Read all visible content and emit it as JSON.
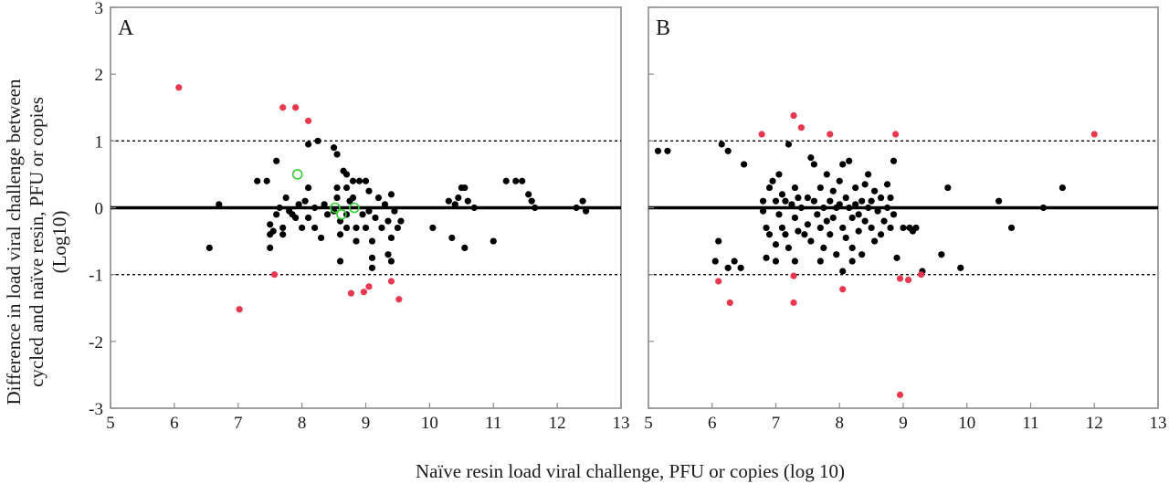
{
  "figure": {
    "ylabel_lines": [
      "Difference in load viral challenge between",
      "cycled and naïve resin, PFU or copies",
      "(Log10)"
    ],
    "xlabel": "Naïve resin load viral challenge, PFU or copies (log 10)"
  },
  "colors": {
    "normal": "#000000",
    "outlier": "#e8384f",
    "open": "#33cc33",
    "frame": "#8a8a8a"
  },
  "chart_data": [
    {
      "type": "scatter",
      "panel_label": "A",
      "xlim": [
        5,
        13
      ],
      "ylim": [
        -3,
        3
      ],
      "xticks": [
        "5",
        "6",
        "7",
        "8",
        "9",
        "10",
        "11",
        "12",
        "13"
      ],
      "yticks": [
        "3",
        "2",
        "1",
        "0",
        "-1",
        "-2",
        "-3"
      ],
      "reference_lines": [
        {
          "y": 0,
          "style": "solid"
        },
        {
          "y": 1,
          "style": "dotted"
        },
        {
          "y": -1,
          "style": "dotted"
        }
      ],
      "series": [
        {
          "kind": "normal",
          "points": [
            [
              6.55,
              -0.6
            ],
            [
              6.7,
              0.05
            ],
            [
              7.3,
              0.4
            ],
            [
              7.45,
              0.4
            ],
            [
              7.5,
              -0.25
            ],
            [
              7.5,
              -0.4
            ],
            [
              7.55,
              -0.35
            ],
            [
              7.5,
              -0.6
            ],
            [
              7.6,
              0.7
            ],
            [
              7.6,
              -0.1
            ],
            [
              7.65,
              0.0
            ],
            [
              7.7,
              -0.3
            ],
            [
              7.7,
              -0.4
            ],
            [
              7.75,
              0.15
            ],
            [
              7.8,
              -0.05
            ],
            [
              7.85,
              -0.1
            ],
            [
              7.9,
              -0.15
            ],
            [
              7.95,
              0.05
            ],
            [
              8.0,
              -0.3
            ],
            [
              8.05,
              0.1
            ],
            [
              8.1,
              0.3
            ],
            [
              8.1,
              -0.15
            ],
            [
              8.1,
              0.95
            ],
            [
              8.2,
              0.0
            ],
            [
              8.2,
              -0.3
            ],
            [
              8.25,
              1.0
            ],
            [
              8.3,
              -0.45
            ],
            [
              8.35,
              0.05
            ],
            [
              8.4,
              -0.1
            ],
            [
              8.5,
              -0.05
            ],
            [
              8.5,
              0.9
            ],
            [
              8.55,
              0.8
            ],
            [
              8.55,
              0.3
            ],
            [
              8.55,
              0.15
            ],
            [
              8.6,
              -0.2
            ],
            [
              8.6,
              -0.4
            ],
            [
              8.65,
              0.55
            ],
            [
              8.7,
              0.5
            ],
            [
              8.7,
              0.3
            ],
            [
              8.7,
              -0.1
            ],
            [
              8.7,
              -0.3
            ],
            [
              8.75,
              0.1
            ],
            [
              8.8,
              0.4
            ],
            [
              8.8,
              0.15
            ],
            [
              8.85,
              -0.3
            ],
            [
              8.85,
              -0.5
            ],
            [
              8.9,
              0.4
            ],
            [
              8.95,
              -0.1
            ],
            [
              9.0,
              0.4
            ],
            [
              9.0,
              -0.3
            ],
            [
              9.05,
              -0.05
            ],
            [
              9.05,
              0.25
            ],
            [
              9.1,
              -0.5
            ],
            [
              9.1,
              -0.75
            ],
            [
              9.15,
              -0.15
            ],
            [
              9.2,
              0.15
            ],
            [
              9.25,
              -0.3
            ],
            [
              9.3,
              0.05
            ],
            [
              9.35,
              -0.2
            ],
            [
              9.35,
              -0.7
            ],
            [
              9.4,
              0.2
            ],
            [
              9.4,
              -0.45
            ],
            [
              9.45,
              -0.05
            ],
            [
              9.5,
              -0.3
            ],
            [
              9.55,
              -0.2
            ],
            [
              8.6,
              -0.8
            ],
            [
              9.4,
              -0.8
            ],
            [
              9.1,
              -0.9
            ],
            [
              10.05,
              -0.3
            ],
            [
              10.3,
              0.1
            ],
            [
              10.35,
              -0.45
            ],
            [
              10.4,
              0.05
            ],
            [
              10.45,
              0.15
            ],
            [
              10.5,
              0.3
            ],
            [
              10.55,
              0.3
            ],
            [
              10.55,
              -0.6
            ],
            [
              10.6,
              0.1
            ],
            [
              10.7,
              0.0
            ],
            [
              11.0,
              -0.5
            ],
            [
              11.2,
              0.4
            ],
            [
              11.35,
              0.4
            ],
            [
              11.45,
              0.4
            ],
            [
              11.55,
              0.2
            ],
            [
              11.6,
              0.1
            ],
            [
              11.65,
              0.0
            ],
            [
              12.3,
              0.0
            ],
            [
              12.4,
              0.1
            ],
            [
              12.45,
              -0.05
            ]
          ]
        },
        {
          "kind": "outlier",
          "points": [
            [
              6.07,
              1.8
            ],
            [
              7.7,
              1.5
            ],
            [
              7.9,
              1.5
            ],
            [
              8.1,
              1.3
            ],
            [
              7.02,
              -1.52
            ],
            [
              7.57,
              -1.0
            ],
            [
              8.77,
              -1.28
            ],
            [
              8.97,
              -1.26
            ],
            [
              9.05,
              -1.18
            ],
            [
              9.4,
              -1.1
            ],
            [
              9.52,
              -1.37
            ]
          ]
        },
        {
          "kind": "open",
          "points": [
            [
              7.93,
              0.5
            ],
            [
              8.52,
              0.0
            ],
            [
              8.62,
              -0.1
            ],
            [
              8.82,
              0.0
            ]
          ]
        }
      ]
    },
    {
      "type": "scatter",
      "panel_label": "B",
      "xlim": [
        5,
        13
      ],
      "ylim": [
        -3,
        3
      ],
      "xticks": [
        "5",
        "6",
        "7",
        "8",
        "9",
        "10",
        "11",
        "12",
        "13"
      ],
      "yticks": [
        "3",
        "2",
        "1",
        "0",
        "-1",
        "-2",
        "-3"
      ],
      "reference_lines": [
        {
          "y": 0,
          "style": "solid"
        },
        {
          "y": 1,
          "style": "dotted"
        },
        {
          "y": -1,
          "style": "dotted"
        }
      ],
      "series": [
        {
          "kind": "normal",
          "points": [
            [
              5.15,
              0.85
            ],
            [
              5.3,
              0.85
            ],
            [
              6.05,
              -0.8
            ],
            [
              6.1,
              -0.5
            ],
            [
              6.15,
              0.95
            ],
            [
              6.25,
              0.85
            ],
            [
              6.25,
              -0.9
            ],
            [
              6.35,
              -0.8
            ],
            [
              6.45,
              -0.9
            ],
            [
              6.5,
              0.65
            ],
            [
              6.8,
              0.1
            ],
            [
              6.8,
              -0.05
            ],
            [
              6.85,
              -0.3
            ],
            [
              6.9,
              0.3
            ],
            [
              6.9,
              -0.4
            ],
            [
              6.95,
              0.4
            ],
            [
              7.0,
              0.1
            ],
            [
              7.0,
              -0.55
            ],
            [
              7.05,
              0.5
            ],
            [
              7.05,
              -0.1
            ],
            [
              7.1,
              0.2
            ],
            [
              7.1,
              -0.3
            ],
            [
              7.15,
              0.1
            ],
            [
              7.15,
              -0.4
            ],
            [
              7.2,
              0.95
            ],
            [
              7.2,
              -0.6
            ],
            [
              7.25,
              0.05
            ],
            [
              7.3,
              0.3
            ],
            [
              7.3,
              -0.15
            ],
            [
              7.35,
              0.15
            ],
            [
              7.35,
              -0.35
            ],
            [
              7.4,
              0.0
            ],
            [
              7.45,
              -0.4
            ],
            [
              7.5,
              0.15
            ],
            [
              7.5,
              -0.25
            ],
            [
              7.55,
              0.75
            ],
            [
              7.55,
              -0.5
            ],
            [
              7.6,
              0.65
            ],
            [
              7.6,
              0.1
            ],
            [
              7.65,
              -0.1
            ],
            [
              7.7,
              0.3
            ],
            [
              7.7,
              -0.3
            ],
            [
              7.75,
              0.0
            ],
            [
              7.75,
              -0.6
            ],
            [
              7.8,
              0.5
            ],
            [
              7.8,
              -0.2
            ],
            [
              7.85,
              0.1
            ],
            [
              7.85,
              -0.4
            ],
            [
              7.9,
              0.25
            ],
            [
              7.9,
              -0.15
            ],
            [
              7.95,
              0.0
            ],
            [
              7.95,
              -0.7
            ],
            [
              8.0,
              0.4
            ],
            [
              8.0,
              0.05
            ],
            [
              8.05,
              -0.3
            ],
            [
              8.05,
              0.65
            ],
            [
              8.1,
              0.15
            ],
            [
              8.1,
              -0.45
            ],
            [
              8.15,
              0.0
            ],
            [
              8.15,
              0.7
            ],
            [
              8.2,
              -0.15
            ],
            [
              8.2,
              -0.6
            ],
            [
              8.25,
              0.3
            ],
            [
              8.25,
              0.05
            ],
            [
              8.3,
              -0.1
            ],
            [
              8.3,
              -0.35
            ],
            [
              8.35,
              0.1
            ],
            [
              8.35,
              -0.7
            ],
            [
              8.4,
              0.35
            ],
            [
              8.4,
              -0.2
            ],
            [
              8.45,
              0.0
            ],
            [
              8.45,
              0.5
            ],
            [
              8.5,
              -0.3
            ],
            [
              8.5,
              0.1
            ],
            [
              8.55,
              -0.5
            ],
            [
              8.55,
              0.25
            ],
            [
              8.6,
              -0.05
            ],
            [
              8.65,
              0.15
            ],
            [
              8.65,
              -0.4
            ],
            [
              8.7,
              -0.2
            ],
            [
              8.75,
              0.0
            ],
            [
              8.75,
              0.35
            ],
            [
              8.8,
              0.15
            ],
            [
              8.8,
              -0.3
            ],
            [
              8.85,
              0.7
            ],
            [
              8.85,
              -0.1
            ],
            [
              8.9,
              -0.75
            ],
            [
              9.0,
              -0.3
            ],
            [
              9.1,
              -0.3
            ],
            [
              9.15,
              -0.35
            ],
            [
              9.2,
              -0.3
            ],
            [
              7.3,
              -0.8
            ],
            [
              7.7,
              -0.8
            ],
            [
              8.05,
              -0.95
            ],
            [
              8.2,
              -0.8
            ],
            [
              9.3,
              -0.95
            ],
            [
              9.6,
              -0.7
            ],
            [
              9.7,
              0.3
            ],
            [
              9.9,
              -0.9
            ],
            [
              10.5,
              0.1
            ],
            [
              10.7,
              -0.3
            ],
            [
              11.2,
              0.0
            ],
            [
              11.5,
              0.3
            ],
            [
              6.85,
              -0.75
            ],
            [
              7.0,
              -0.8
            ]
          ]
        },
        {
          "kind": "outlier",
          "points": [
            [
              6.78,
              1.1
            ],
            [
              7.28,
              1.38
            ],
            [
              7.4,
              1.2
            ],
            [
              7.85,
              1.1
            ],
            [
              8.88,
              1.1
            ],
            [
              12.0,
              1.1
            ],
            [
              6.1,
              -1.1
            ],
            [
              6.28,
              -1.42
            ],
            [
              7.28,
              -1.02
            ],
            [
              7.28,
              -1.42
            ],
            [
              8.05,
              -1.22
            ],
            [
              8.95,
              -1.06
            ],
            [
              9.08,
              -1.08
            ],
            [
              9.28,
              -1.0
            ],
            [
              8.95,
              -2.8
            ]
          ]
        }
      ]
    }
  ]
}
